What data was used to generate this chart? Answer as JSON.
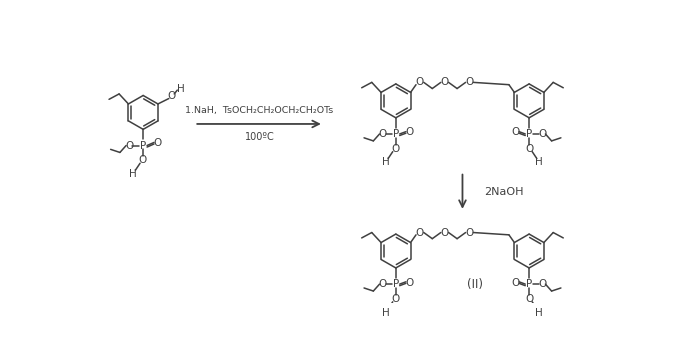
{
  "bg_color": "#ffffff",
  "line_color": "#404040",
  "text_color": "#404040",
  "reagent1": "1.NaH,  TsOCH₂CH₂OCH₂CH₂OTs",
  "reagent2": "100ºC",
  "label_naoh": "2NaOH",
  "label_II": "(II)",
  "lw": 1.1,
  "ring_r": 22
}
